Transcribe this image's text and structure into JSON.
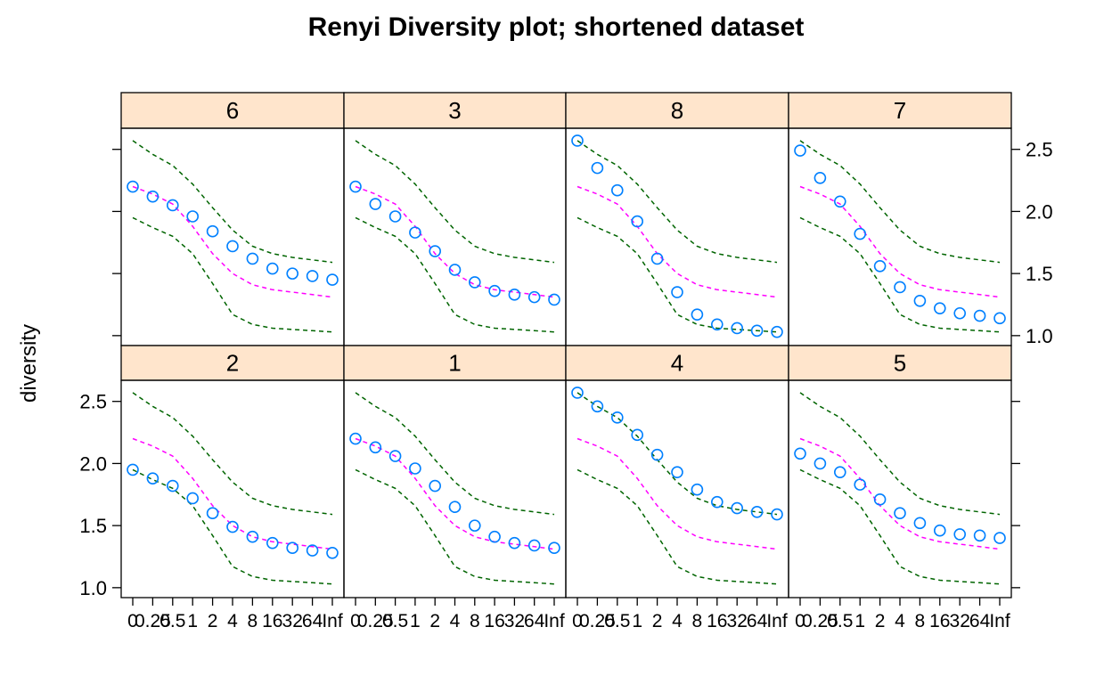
{
  "chart_data": {
    "type": "scatter",
    "title": "Renyi Diversity plot; shortened dataset",
    "ylabel": "diversity",
    "xlabel": "",
    "x_tick_labels": [
      "0",
      "0.25",
      "0.5",
      "1",
      "2",
      "4",
      "8",
      "16",
      "32",
      "64",
      "Inf"
    ],
    "y_ticks": [
      "1.0",
      "1.5",
      "2.0",
      "2.5"
    ],
    "ylim": [
      0.92,
      2.67
    ],
    "layout": {
      "columns": 4,
      "rows": 2
    },
    "reference_lines": {
      "mean": {
        "color": "#ff00ff",
        "values": [
          2.2,
          2.14,
          2.06,
          1.88,
          1.66,
          1.5,
          1.41,
          1.37,
          1.35,
          1.33,
          1.31
        ]
      },
      "upper": {
        "color": "#006400",
        "values": [
          2.57,
          2.46,
          2.37,
          2.22,
          2.03,
          1.85,
          1.72,
          1.66,
          1.63,
          1.61,
          1.59
        ]
      },
      "lower": {
        "color": "#006400",
        "values": [
          1.95,
          1.87,
          1.8,
          1.66,
          1.42,
          1.17,
          1.09,
          1.06,
          1.05,
          1.04,
          1.03
        ]
      }
    },
    "panels": [
      {
        "label": "6",
        "values": [
          2.2,
          2.12,
          2.05,
          1.96,
          1.84,
          1.72,
          1.62,
          1.54,
          1.5,
          1.48,
          1.45
        ]
      },
      {
        "label": "3",
        "values": [
          2.2,
          2.06,
          1.96,
          1.83,
          1.68,
          1.53,
          1.43,
          1.36,
          1.33,
          1.31,
          1.29
        ]
      },
      {
        "label": "8",
        "values": [
          2.57,
          2.35,
          2.17,
          1.92,
          1.62,
          1.35,
          1.17,
          1.09,
          1.06,
          1.04,
          1.03
        ]
      },
      {
        "label": "7",
        "values": [
          2.49,
          2.27,
          2.08,
          1.82,
          1.56,
          1.39,
          1.28,
          1.22,
          1.18,
          1.16,
          1.14
        ]
      },
      {
        "label": "2",
        "values": [
          1.95,
          1.88,
          1.82,
          1.72,
          1.6,
          1.49,
          1.41,
          1.36,
          1.32,
          1.3,
          1.28
        ]
      },
      {
        "label": "1",
        "values": [
          2.2,
          2.13,
          2.06,
          1.96,
          1.82,
          1.65,
          1.5,
          1.41,
          1.36,
          1.34,
          1.32
        ]
      },
      {
        "label": "4",
        "values": [
          2.57,
          2.46,
          2.37,
          2.23,
          2.07,
          1.93,
          1.79,
          1.69,
          1.64,
          1.61,
          1.59
        ]
      },
      {
        "label": "5",
        "values": [
          2.08,
          2.0,
          1.93,
          1.83,
          1.71,
          1.6,
          1.52,
          1.46,
          1.43,
          1.42,
          1.4
        ]
      }
    ],
    "colors": {
      "points": "#0080ff",
      "strip": "#ffe5cc",
      "frame": "#000000"
    }
  }
}
